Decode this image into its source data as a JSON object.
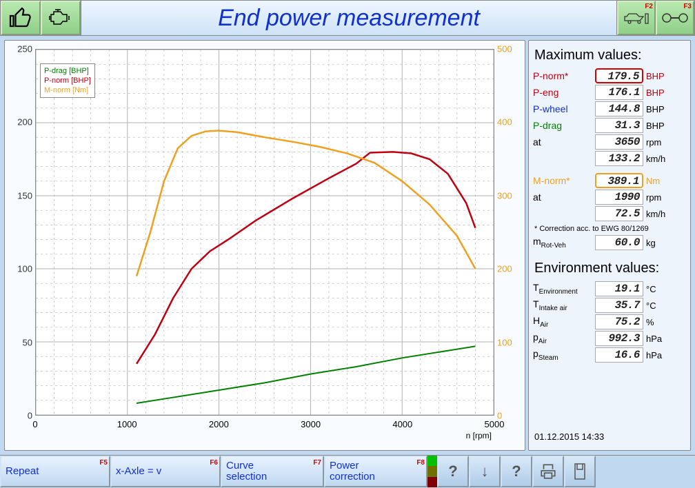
{
  "header": {
    "title": "End power measurement",
    "btn_ok": "thumbs-up",
    "btn_engine": "engine",
    "right1_fkey": "F2",
    "right2_fkey": "F3"
  },
  "chart": {
    "type": "line",
    "xlabel": "n [rpm]",
    "x_min": 0,
    "x_max": 5000,
    "x_step": 1000,
    "y_left_min": 0,
    "y_left_max": 250,
    "y_left_step": 50,
    "y_right_min": 0,
    "y_right_max": 500,
    "y_right_step": 100,
    "grid_color": "#b0b0b0",
    "legend": [
      {
        "label": "P-drag [BHP]",
        "color": "#008000"
      },
      {
        "label": "P-norm [BHP]",
        "color": "#c00010"
      },
      {
        "label": "M-norm [Nm]",
        "color": "#f0a020"
      }
    ],
    "series": {
      "p_drag": {
        "color": "#008000",
        "width": 2,
        "points": [
          [
            1100,
            8
          ],
          [
            1500,
            12
          ],
          [
            2000,
            17
          ],
          [
            2500,
            22
          ],
          [
            3000,
            28
          ],
          [
            3500,
            33
          ],
          [
            4000,
            39
          ],
          [
            4500,
            44
          ],
          [
            4800,
            47
          ]
        ]
      },
      "p_norm": {
        "color": "#c00010",
        "width": 2.5,
        "points": [
          [
            1100,
            35
          ],
          [
            1300,
            55
          ],
          [
            1500,
            80
          ],
          [
            1700,
            100
          ],
          [
            1900,
            112
          ],
          [
            2100,
            120
          ],
          [
            2400,
            133
          ],
          [
            2800,
            148
          ],
          [
            3200,
            162
          ],
          [
            3500,
            172
          ],
          [
            3650,
            179.5
          ],
          [
            3900,
            180
          ],
          [
            4100,
            179
          ],
          [
            4300,
            175
          ],
          [
            4500,
            165
          ],
          [
            4700,
            145
          ],
          [
            4800,
            128
          ]
        ]
      },
      "m_norm": {
        "color": "#f0a020",
        "width": 2.5,
        "axis": "right",
        "points": [
          [
            1100,
            190
          ],
          [
            1250,
            250
          ],
          [
            1400,
            320
          ],
          [
            1550,
            365
          ],
          [
            1700,
            382
          ],
          [
            1850,
            388
          ],
          [
            1990,
            389.1
          ],
          [
            2200,
            387
          ],
          [
            2500,
            380
          ],
          [
            2800,
            374
          ],
          [
            3100,
            367
          ],
          [
            3400,
            358
          ],
          [
            3700,
            345
          ],
          [
            4000,
            320
          ],
          [
            4300,
            288
          ],
          [
            4600,
            245
          ],
          [
            4800,
            200
          ]
        ]
      }
    }
  },
  "max": {
    "heading": "Maximum values:",
    "rows": [
      {
        "label": "P-norm*",
        "value": "179.5",
        "unit": "BHP",
        "label_color": "#c00010",
        "unit_color": "#c00010",
        "box": "red"
      },
      {
        "label": "P-eng",
        "value": "176.1",
        "unit": "BHP",
        "label_color": "#c00010",
        "unit_color": "#c00010"
      },
      {
        "label": "P-wheel",
        "value": "144.8",
        "unit": "BHP",
        "label_color": "#1030d0"
      },
      {
        "label": "P-drag",
        "value": "31.3",
        "unit": "BHP",
        "label_color": "#008000"
      },
      {
        "label": "at",
        "value": "3650",
        "unit": "rpm"
      },
      {
        "label": "",
        "value": "133.2",
        "unit": "km/h"
      }
    ],
    "torque": [
      {
        "label": "M-norm*",
        "value": "389.1",
        "unit": "Nm",
        "label_color": "#f0a020",
        "unit_color": "#f0a020",
        "box": "orange"
      },
      {
        "label": "at",
        "value": "1990",
        "unit": "rpm"
      },
      {
        "label": "",
        "value": "72.5",
        "unit": "km/h"
      }
    ],
    "note": "* Correction acc. to EWG 80/1269",
    "mrot": {
      "label": "m",
      "sub": "Rot-Veh",
      "value": "60.0",
      "unit": "kg"
    }
  },
  "env": {
    "heading": "Environment values:",
    "rows": [
      {
        "label": "T",
        "sub": "Environment",
        "value": "19.1",
        "unit": "°C"
      },
      {
        "label": "T",
        "sub": "Intake air",
        "value": "35.7",
        "unit": "°C"
      },
      {
        "label": "H",
        "sub": "Air",
        "value": "75.2",
        "unit": "%"
      },
      {
        "label": "p",
        "sub": "Air",
        "value": "992.3",
        "unit": "hPa"
      },
      {
        "label": "p",
        "sub": "Steam",
        "value": "16.6",
        "unit": "hPa"
      }
    ]
  },
  "timestamp": "01.12.2015  14:33",
  "footer": {
    "buttons": [
      {
        "label": "Repeat",
        "fkey": "F5",
        "w": 160
      },
      {
        "label": "x-Axle = v",
        "fkey": "F6",
        "w": 160
      },
      {
        "label": "Curve\nselection",
        "fkey": "F7",
        "w": 150
      },
      {
        "label": "Power\ncorrection",
        "fkey": "F8",
        "w": 150
      }
    ],
    "traffic": {
      "green": "#00c000",
      "yellow": "#707000",
      "red": "#800000"
    }
  }
}
